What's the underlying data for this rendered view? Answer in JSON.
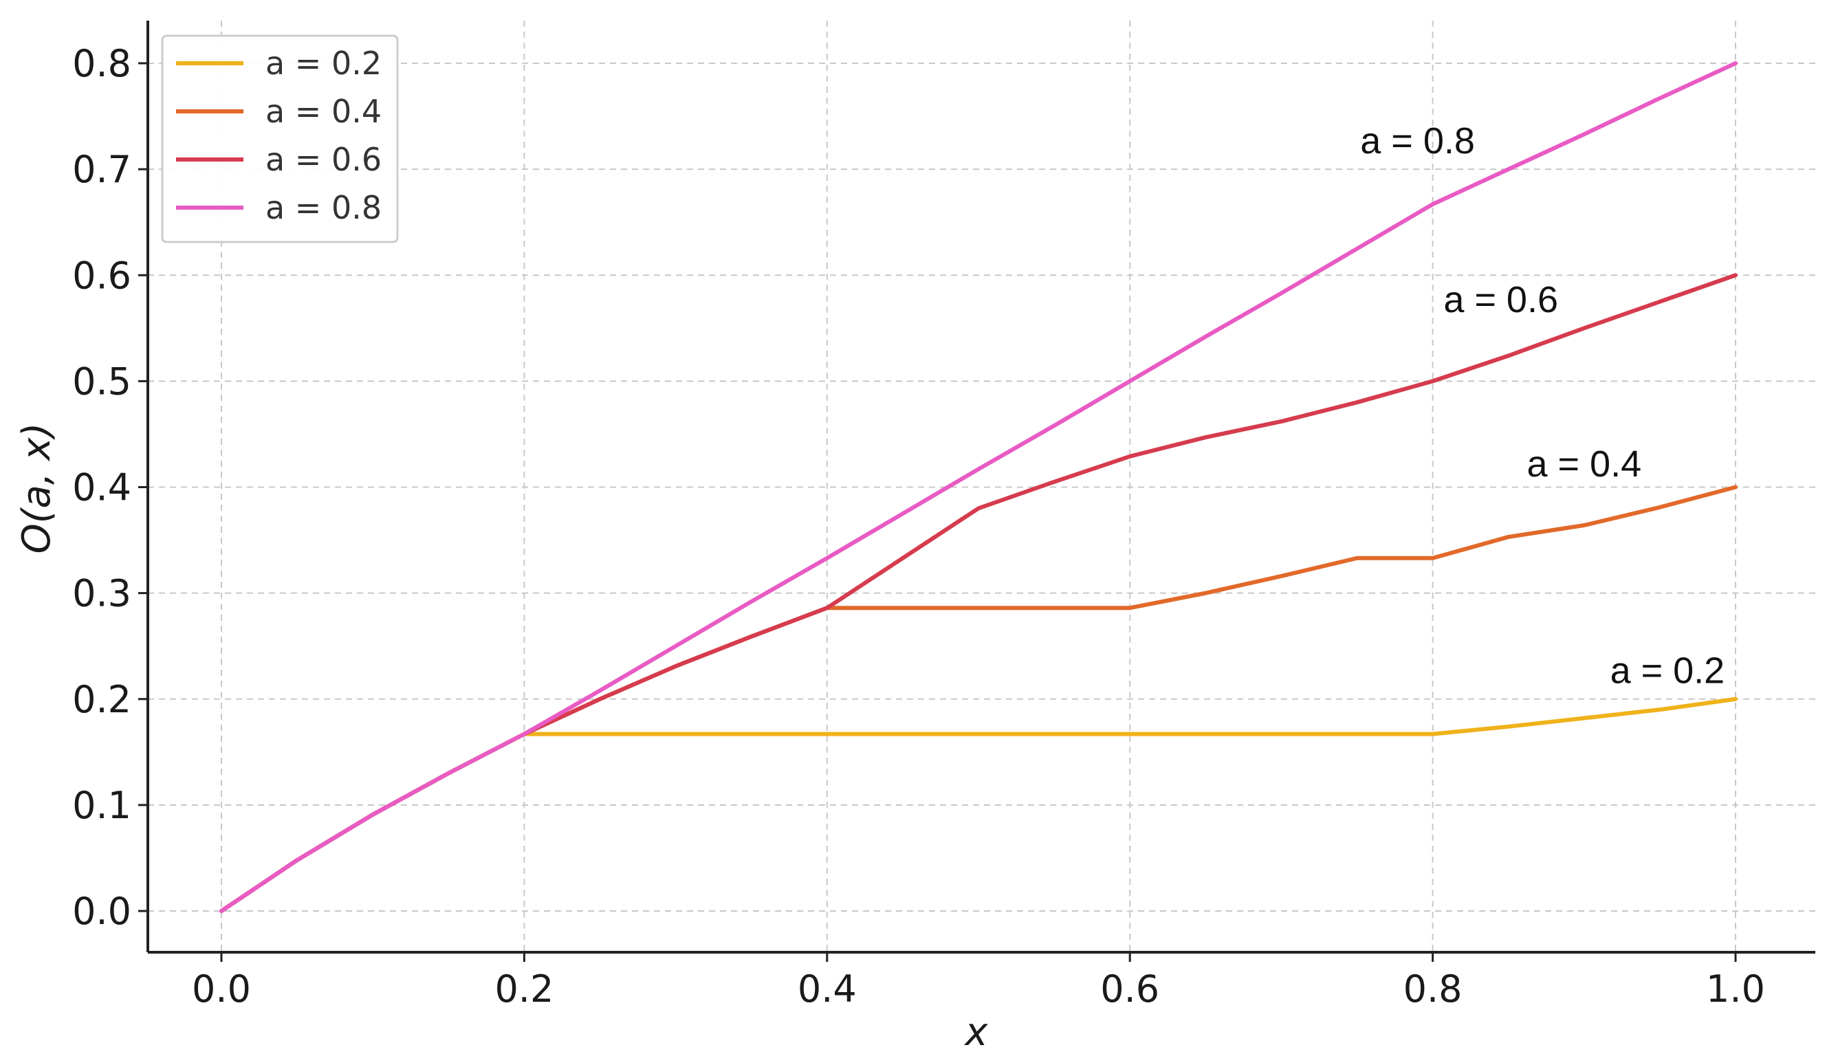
{
  "chart_data": {
    "type": "line",
    "title": "",
    "xlabel": "x",
    "ylabel": "O(a, x)",
    "xlim": [
      -0.05,
      1.05
    ],
    "ylim": [
      -0.04,
      0.84
    ],
    "xticks": [
      0.0,
      0.2,
      0.4,
      0.6,
      0.8,
      1.0
    ],
    "xtick_labels": [
      "0.0",
      "0.2",
      "0.4",
      "0.6",
      "0.8",
      "1.0"
    ],
    "yticks": [
      0.0,
      0.1,
      0.2,
      0.3,
      0.4,
      0.5,
      0.6,
      0.7,
      0.8
    ],
    "ytick_labels": [
      "0.0",
      "0.1",
      "0.2",
      "0.3",
      "0.4",
      "0.5",
      "0.6",
      "0.7",
      "0.8"
    ],
    "grid": true,
    "legend_position": "top-left",
    "x": [
      0.0,
      0.05,
      0.1,
      0.15,
      0.2,
      0.25,
      0.3,
      0.35,
      0.4,
      0.45,
      0.5,
      0.55,
      0.6,
      0.65,
      0.7,
      0.75,
      0.8,
      0.85,
      0.9,
      0.95,
      1.0
    ],
    "series": [
      {
        "name": "a = 0.2",
        "color": "#f0b21a",
        "annotation": "a = 0.2",
        "values": [
          0.0,
          0.048,
          0.091,
          0.13,
          0.167,
          0.167,
          0.167,
          0.167,
          0.167,
          0.167,
          0.167,
          0.167,
          0.167,
          0.167,
          0.167,
          0.167,
          0.167,
          0.174,
          0.182,
          0.19,
          0.2
        ]
      },
      {
        "name": "a = 0.4",
        "color": "#e2692a",
        "annotation": "a = 0.4",
        "values": [
          0.0,
          0.048,
          0.091,
          0.13,
          0.167,
          0.2,
          0.231,
          0.259,
          0.286,
          0.286,
          0.286,
          0.286,
          0.286,
          0.3,
          0.316,
          0.333,
          0.333,
          0.353,
          0.364,
          0.381,
          0.4
        ]
      },
      {
        "name": "a = 0.6",
        "color": "#d63b4e",
        "annotation": "a = 0.6",
        "values": [
          0.0,
          0.048,
          0.091,
          0.13,
          0.167,
          0.2,
          0.231,
          0.259,
          0.286,
          0.333,
          0.38,
          0.405,
          0.429,
          0.447,
          0.462,
          0.48,
          0.5,
          0.524,
          0.55,
          0.575,
          0.6
        ]
      },
      {
        "name": "a = 0.8",
        "color": "#e85bc4",
        "annotation": "a = 0.8",
        "values": [
          0.0,
          0.048,
          0.091,
          0.13,
          0.167,
          0.208,
          0.25,
          0.292,
          0.333,
          0.375,
          0.417,
          0.458,
          0.5,
          0.542,
          0.583,
          0.625,
          0.667,
          0.7,
          0.733,
          0.767,
          0.8
        ]
      }
    ]
  }
}
